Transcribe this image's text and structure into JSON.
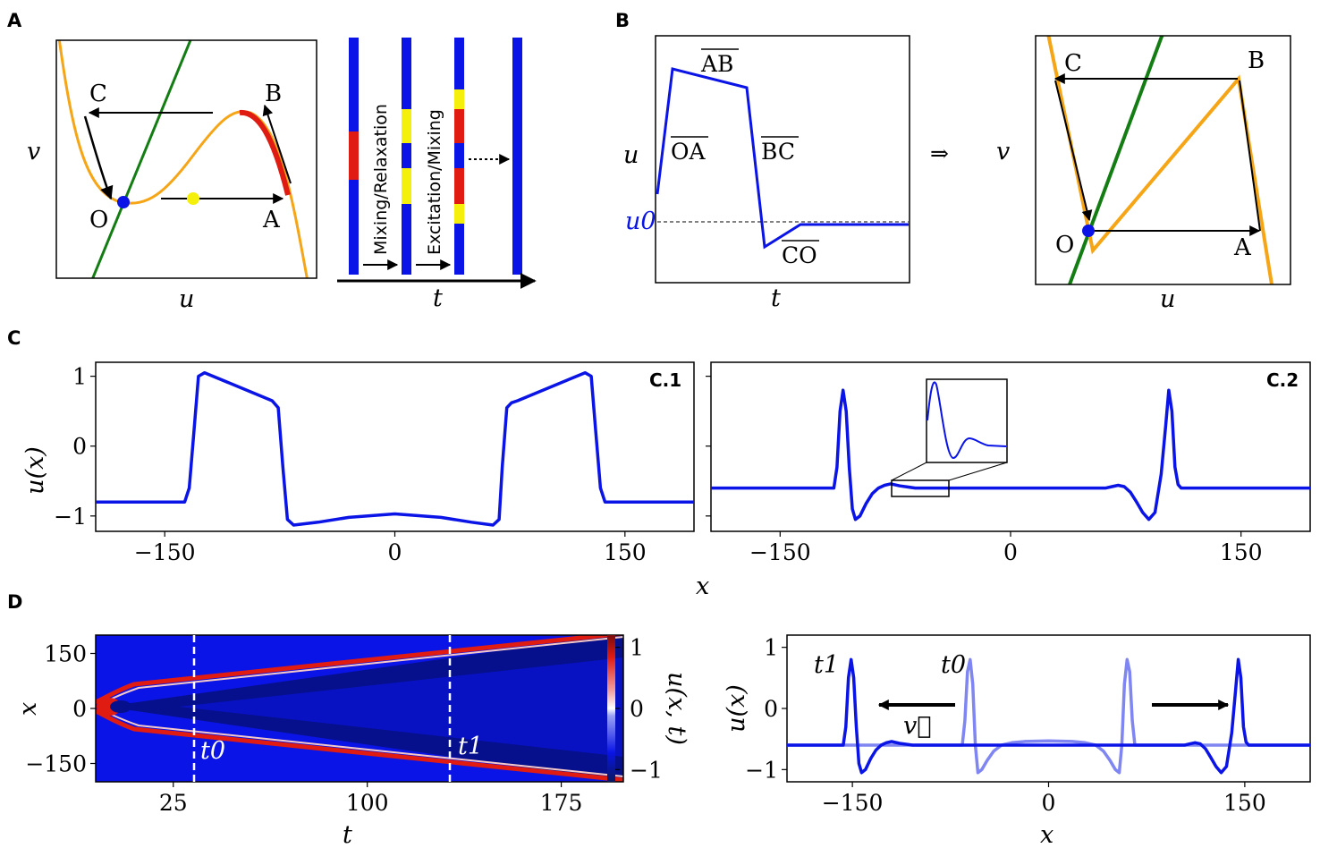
{
  "panel_labels": {
    "a": "A",
    "b": "B",
    "c": "C",
    "d": "D"
  },
  "axis_labels": {
    "u": "u",
    "v": "v",
    "t": "t",
    "x": "x",
    "ux": "u(x)",
    "uxt": "u(x, t)",
    "u0": "u0"
  },
  "point_labels": {
    "O": "O",
    "A": "A",
    "B": "B",
    "C": "C"
  },
  "segment_labels": {
    "OA": "OA",
    "AB": "AB",
    "BC": "BC",
    "CO": "CO"
  },
  "strip_labels": {
    "mixing_relaxation": "Mixing/Relaxation",
    "excitation_mixing": "Excitation/Mixing"
  },
  "implies": "⇒",
  "subpanel_labels": {
    "c1": "C.1",
    "c2": "C.2"
  },
  "time_labels": {
    "t0": "t0",
    "t1": "t1"
  },
  "velocity_label": "v⃗",
  "colors": {
    "blue": "#0a14e6",
    "light_blue": "#7f86f2",
    "orange": "#f5a516",
    "red": "#e01b12",
    "green": "#137d13",
    "yellow": "#f4f00c"
  },
  "chart_data": [
    {
      "id": "C.1",
      "type": "line",
      "xlabel": "x",
      "ylabel": "u(x)",
      "xticks": [
        -150,
        0,
        150
      ],
      "yticks": [
        1,
        0,
        -1
      ],
      "xlim": [
        -195,
        195
      ],
      "ylim": [
        -1.22,
        1.2
      ],
      "x": [
        -195,
        -137,
        -134,
        -131,
        -128,
        -124,
        -80,
        -76,
        -73,
        -70,
        -66,
        -50,
        -30,
        0,
        30,
        50,
        64,
        68,
        70,
        73,
        76,
        80,
        124,
        128,
        131,
        134,
        137,
        195
      ],
      "y": [
        -0.8,
        -0.8,
        -0.6,
        0.2,
        1.0,
        1.05,
        0.65,
        0.55,
        -0.3,
        -1.05,
        -1.13,
        -1.09,
        -1.02,
        -0.97,
        -1.02,
        -1.09,
        -1.13,
        -1.05,
        -0.3,
        0.55,
        0.62,
        0.65,
        1.05,
        1.0,
        0.2,
        -0.6,
        -0.8,
        -0.8
      ]
    },
    {
      "id": "C.2",
      "type": "line",
      "xlabel": "x",
      "ylabel": "u(x)",
      "xticks": [
        -150,
        0,
        150
      ],
      "xlim": [
        -195,
        195
      ],
      "ylim": [
        -1.22,
        1.2
      ],
      "x": [
        -195,
        -115,
        -113,
        -111,
        -109,
        -107,
        -105,
        -103,
        -101,
        -98,
        -94,
        -90,
        -86,
        -82,
        -78,
        -72,
        -62,
        -50,
        0,
        50,
        62,
        66,
        70,
        74,
        78,
        82,
        86,
        90,
        94,
        98,
        101,
        103,
        105,
        107,
        109,
        111,
        113,
        115,
        195
      ],
      "y": [
        -0.6,
        -0.6,
        -0.3,
        0.5,
        0.8,
        0.5,
        -0.3,
        -0.9,
        -1.05,
        -1.0,
        -0.82,
        -0.68,
        -0.6,
        -0.56,
        -0.54,
        -0.57,
        -0.6,
        -0.6,
        -0.6,
        -0.6,
        -0.6,
        -0.58,
        -0.56,
        -0.58,
        -0.66,
        -0.8,
        -0.95,
        -1.05,
        -0.95,
        -0.4,
        0.3,
        0.8,
        0.5,
        -0.3,
        -0.55,
        -0.6,
        -0.6,
        -0.6,
        -0.6
      ]
    },
    {
      "id": "D.heatmap",
      "type": "heatmap",
      "xlabel": "t",
      "ylabel": "x",
      "colorbar_label": "u(x, t)",
      "xticks": [
        25,
        100,
        175
      ],
      "yticks": [
        150,
        0,
        -150
      ],
      "colorbar_ticks": [
        1,
        0,
        -1
      ],
      "xlim": [
        -5,
        199
      ],
      "ylim": [
        -200,
        200
      ],
      "t0": 39,
      "t1": 144,
      "front_speed": 1.07
    },
    {
      "id": "D.profiles",
      "type": "line",
      "xlabel": "x",
      "ylabel": "u(x)",
      "xticks": [
        -150,
        0,
        150
      ],
      "yticks": [
        1,
        0,
        -1
      ],
      "xlim": [
        -200,
        200
      ],
      "ylim": [
        -1.2,
        1.2
      ],
      "series": [
        {
          "name": "t1",
          "x": [
            -200,
            -157,
            -155,
            -153,
            -151,
            -149,
            -147,
            -145,
            -143,
            -140,
            -136,
            -132,
            -128,
            -124,
            -120,
            -114,
            -104,
            -92,
            0,
            92,
            104,
            108,
            112,
            116,
            120,
            124,
            128,
            132,
            136,
            140,
            143,
            145,
            147,
            149,
            151,
            153,
            155,
            157,
            200
          ],
          "y": [
            -0.6,
            -0.6,
            -0.3,
            0.5,
            0.8,
            0.5,
            -0.3,
            -0.9,
            -1.05,
            -1.0,
            -0.82,
            -0.68,
            -0.6,
            -0.56,
            -0.54,
            -0.57,
            -0.6,
            -0.6,
            -0.6,
            -0.6,
            -0.6,
            -0.58,
            -0.56,
            -0.58,
            -0.66,
            -0.8,
            -0.95,
            -1.05,
            -0.95,
            -0.4,
            0.3,
            0.8,
            0.5,
            -0.3,
            -0.55,
            -0.6,
            -0.6,
            -0.6,
            -0.6
          ]
        },
        {
          "name": "t0",
          "x": [
            -200,
            -66,
            -64,
            -62,
            -60,
            -58,
            -56,
            -54,
            -51,
            -47,
            -42,
            -36,
            -28,
            -18,
            0,
            18,
            28,
            36,
            42,
            47,
            51,
            54,
            56,
            58,
            60,
            62,
            64,
            66,
            200
          ],
          "y": [
            -0.6,
            -0.6,
            -0.2,
            0.6,
            0.8,
            0.4,
            -0.6,
            -1.05,
            -1.0,
            -0.85,
            -0.7,
            -0.6,
            -0.56,
            -0.54,
            -0.53,
            -0.54,
            -0.56,
            -0.6,
            -0.7,
            -0.85,
            -1.0,
            -1.05,
            -0.6,
            0.4,
            0.8,
            0.6,
            -0.2,
            -0.6,
            -0.6
          ]
        }
      ]
    }
  ]
}
